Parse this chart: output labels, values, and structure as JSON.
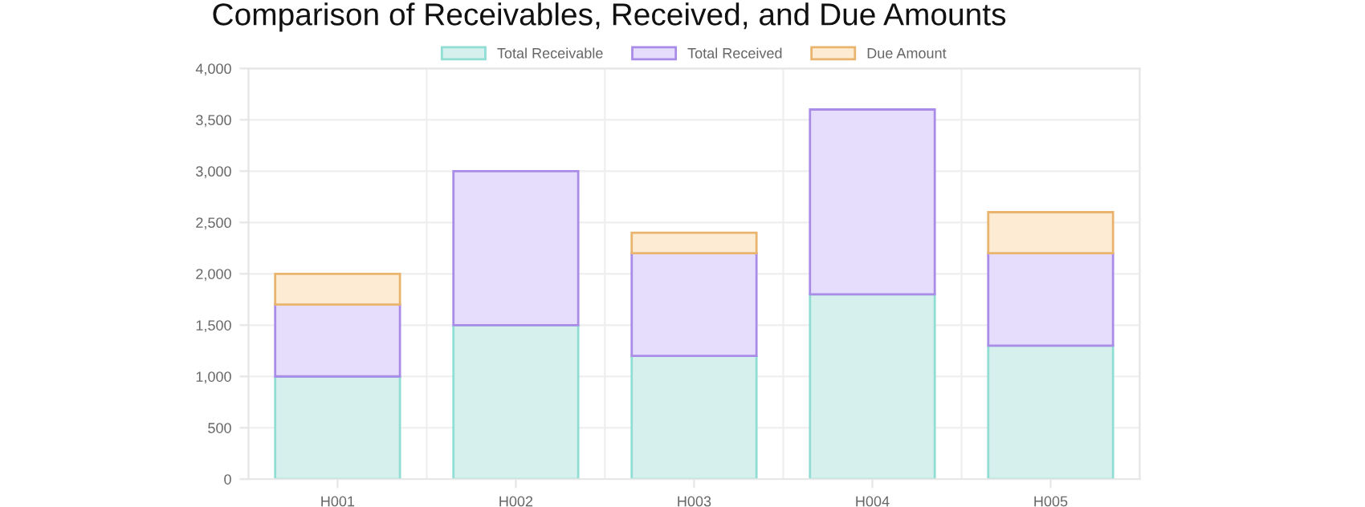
{
  "chart_data": {
    "type": "bar",
    "title": "Comparison of Receivables, Received, and Due Amounts",
    "categories": [
      "H001",
      "H002",
      "H003",
      "H004",
      "H005"
    ],
    "stacked": true,
    "series": [
      {
        "name": "Total Receivable",
        "color": "#d6f0ed",
        "values": [
          1000,
          1500,
          1200,
          1800,
          1300
        ]
      },
      {
        "name": "Total Received",
        "color": "#e6dcfb",
        "values": [
          700,
          1500,
          1000,
          1800,
          900
        ]
      },
      {
        "name": "Due Amount",
        "color": "#fdebd3",
        "values": [
          300,
          0,
          200,
          0,
          400
        ]
      }
    ],
    "ylim": [
      0,
      4000
    ],
    "yticks": [
      {
        "value": 0,
        "label": "0"
      },
      {
        "value": 500,
        "label": "500"
      },
      {
        "value": 1000,
        "label": "1,000"
      },
      {
        "value": 1500,
        "label": "1,500"
      },
      {
        "value": 2000,
        "label": "2,000"
      },
      {
        "value": 2500,
        "label": "2,500"
      },
      {
        "value": 3000,
        "label": "3,000"
      },
      {
        "value": 3500,
        "label": "3,500"
      },
      {
        "value": 4000,
        "label": "4,000"
      }
    ],
    "grid": true,
    "legend": "top"
  }
}
